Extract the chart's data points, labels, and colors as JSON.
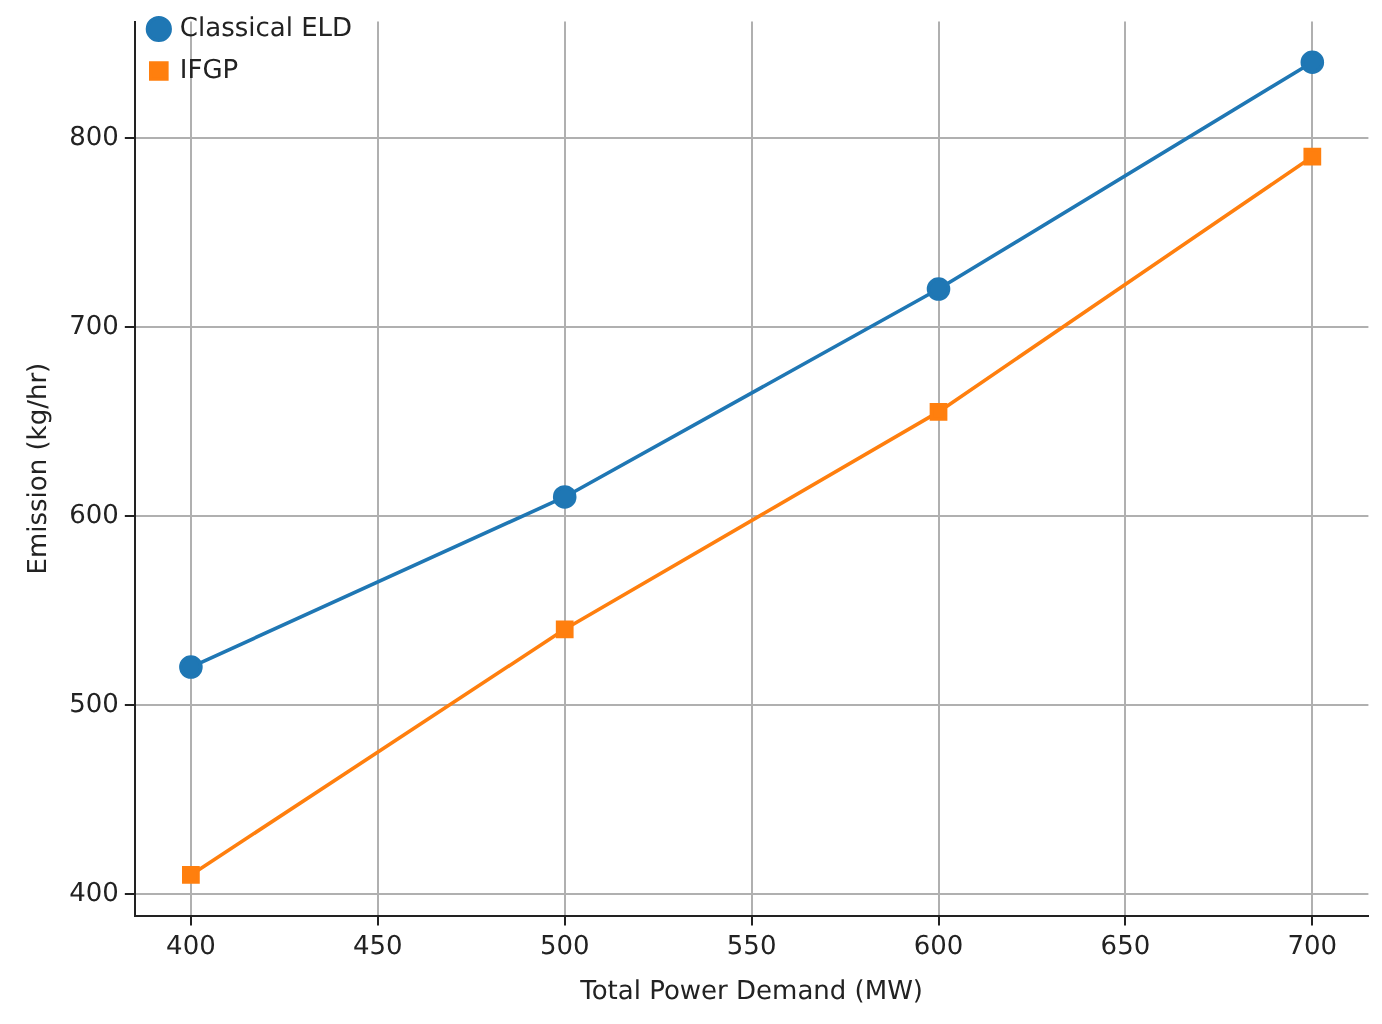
{
  "chart_data": {
    "type": "line",
    "xlabel": "Total Power Demand (MW)",
    "ylabel": "Emission (kg/hr)",
    "x": [
      400,
      500,
      600,
      700
    ],
    "series": [
      {
        "name": "Classical ELD",
        "color": "#1f77b4",
        "marker": "circle",
        "values": [
          520,
          610,
          720,
          840
        ]
      },
      {
        "name": "IFGP",
        "color": "#ff7f0e",
        "marker": "square",
        "values": [
          410,
          540,
          655,
          790
        ]
      }
    ],
    "xlim": [
      385,
      715
    ],
    "xticks": [
      400,
      450,
      500,
      550,
      600,
      650,
      700
    ],
    "ylim": [
      388.5,
      861.5
    ],
    "yticks": [
      400,
      500,
      600,
      700,
      800
    ],
    "grid": true,
    "legend": "top left"
  }
}
